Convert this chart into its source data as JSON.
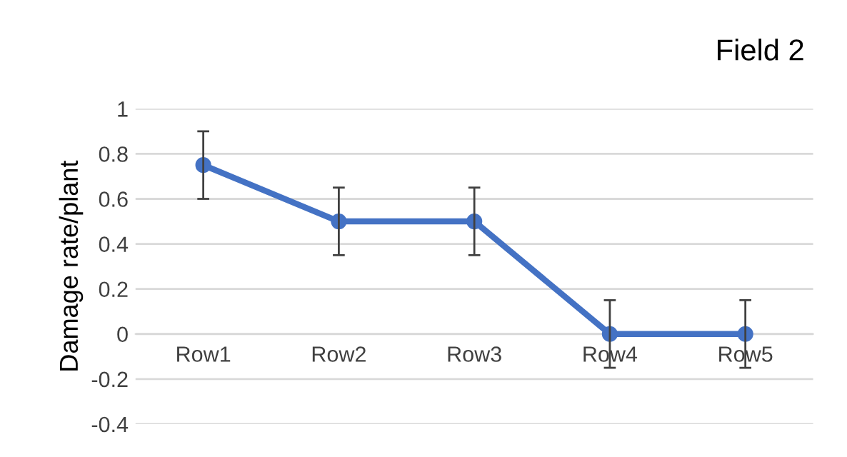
{
  "chart_data": {
    "type": "line",
    "title": "Field 2",
    "ylabel": "Damage rate/plant",
    "categories": [
      "Row1",
      "Row2",
      "Row3",
      "Row4",
      "Row5"
    ],
    "series": [
      {
        "color": "#4472c4",
        "values": [
          0.75,
          0.5,
          0.5,
          0,
          0
        ],
        "errors": [
          0.15,
          0.15,
          0.15,
          0.15,
          0.15
        ]
      }
    ],
    "ylim": [
      -0.4,
      1
    ],
    "yticks": [
      -0.4,
      -0.2,
      0,
      0.2,
      0.4,
      0.6,
      0.8,
      1
    ],
    "grid": "y",
    "marker": "circle",
    "line_style": "solid",
    "legend": false
  }
}
